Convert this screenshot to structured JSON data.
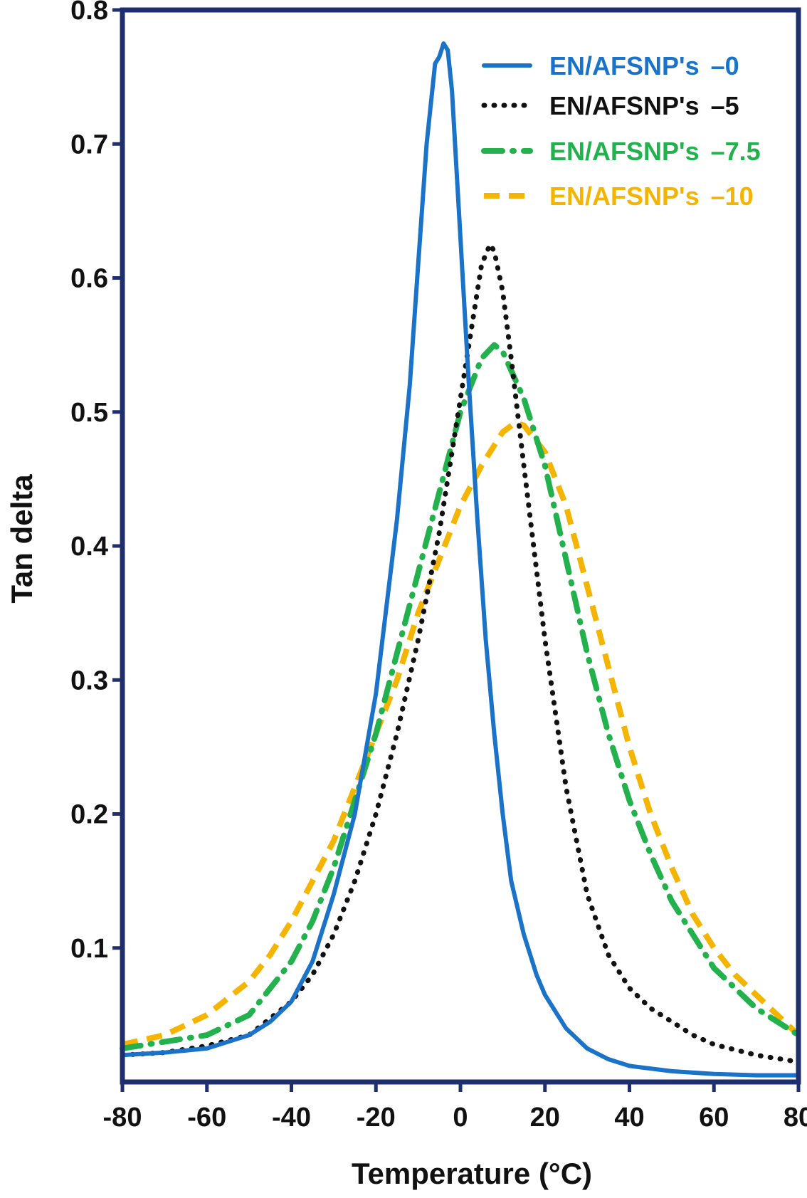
{
  "chart_data": {
    "type": "line",
    "xlabel": "Temperature",
    "xlabel_unit": "(°C)",
    "ylabel": "Tan delta",
    "xlim": [
      -80,
      80
    ],
    "ylim": [
      0,
      0.8
    ],
    "x_ticks": [
      -80,
      -60,
      -40,
      -20,
      0,
      20,
      40,
      60,
      80
    ],
    "y_ticks": [
      0.1,
      0.2,
      0.3,
      0.4,
      0.5,
      0.6,
      0.7,
      0.8
    ],
    "x_tick_labels": [
      "-80",
      "-60",
      "-40",
      "-20",
      "0",
      "20",
      "40",
      "60",
      "80"
    ],
    "y_tick_labels": [
      "0.1",
      "0.2",
      "0.3",
      "0.4",
      "0.5",
      "0.6",
      "0.7",
      "0.8"
    ],
    "grid": false,
    "legend_position": "top-right",
    "series": [
      {
        "name": "EN/AFSNP's",
        "suffix": "0",
        "color": "#1a73c9",
        "style": "solid",
        "x": [
          -80,
          -70,
          -60,
          -55,
          -50,
          -45,
          -40,
          -35,
          -30,
          -25,
          -20,
          -15,
          -12,
          -10,
          -8,
          -6,
          -5,
          -4,
          -3,
          -2,
          0,
          2,
          4,
          6,
          8,
          10,
          12,
          15,
          18,
          20,
          25,
          30,
          35,
          40,
          50,
          60,
          70,
          80
        ],
        "y": [
          0.02,
          0.022,
          0.025,
          0.03,
          0.035,
          0.045,
          0.06,
          0.09,
          0.14,
          0.2,
          0.29,
          0.42,
          0.52,
          0.61,
          0.7,
          0.76,
          0.765,
          0.775,
          0.77,
          0.74,
          0.63,
          0.52,
          0.42,
          0.33,
          0.26,
          0.2,
          0.15,
          0.11,
          0.08,
          0.065,
          0.04,
          0.025,
          0.017,
          0.012,
          0.008,
          0.006,
          0.005,
          0.005
        ]
      },
      {
        "name": "EN/AFSNP's",
        "suffix": "5",
        "color": "#111111",
        "style": "dotted",
        "x": [
          -80,
          -70,
          -60,
          -50,
          -40,
          -35,
          -30,
          -25,
          -20,
          -15,
          -10,
          -5,
          0,
          3,
          5,
          7,
          8,
          10,
          12,
          15,
          20,
          25,
          30,
          35,
          40,
          45,
          50,
          55,
          60,
          70,
          80
        ],
        "y": [
          0.02,
          0.022,
          0.027,
          0.035,
          0.06,
          0.08,
          0.11,
          0.15,
          0.2,
          0.26,
          0.33,
          0.41,
          0.51,
          0.57,
          0.61,
          0.625,
          0.62,
          0.59,
          0.54,
          0.46,
          0.33,
          0.22,
          0.14,
          0.095,
          0.07,
          0.055,
          0.045,
          0.035,
          0.028,
          0.02,
          0.015
        ]
      },
      {
        "name": "EN/AFSNP's",
        "suffix": "7.5",
        "color": "#22b14c",
        "style": "dash-dot",
        "x": [
          -80,
          -70,
          -60,
          -50,
          -40,
          -35,
          -30,
          -25,
          -20,
          -15,
          -10,
          -5,
          0,
          5,
          8,
          10,
          15,
          20,
          25,
          30,
          35,
          40,
          45,
          50,
          55,
          60,
          65,
          70,
          80
        ],
        "y": [
          0.025,
          0.03,
          0.035,
          0.05,
          0.09,
          0.12,
          0.16,
          0.21,
          0.26,
          0.32,
          0.38,
          0.44,
          0.5,
          0.54,
          0.55,
          0.545,
          0.51,
          0.46,
          0.39,
          0.32,
          0.26,
          0.21,
          0.17,
          0.135,
          0.11,
          0.085,
          0.07,
          0.055,
          0.035
        ]
      },
      {
        "name": "EN/AFSNP's",
        "suffix": "10",
        "color": "#f4b400",
        "style": "dashed",
        "x": [
          -80,
          -70,
          -60,
          -50,
          -45,
          -40,
          -35,
          -30,
          -25,
          -20,
          -15,
          -10,
          -5,
          0,
          5,
          10,
          13,
          15,
          20,
          25,
          30,
          35,
          40,
          45,
          50,
          55,
          60,
          65,
          70,
          80
        ],
        "y": [
          0.028,
          0.035,
          0.05,
          0.075,
          0.095,
          0.12,
          0.15,
          0.18,
          0.22,
          0.26,
          0.3,
          0.35,
          0.39,
          0.43,
          0.46,
          0.485,
          0.492,
          0.49,
          0.47,
          0.43,
          0.37,
          0.31,
          0.25,
          0.2,
          0.16,
          0.125,
          0.1,
          0.08,
          0.065,
          0.035
        ]
      }
    ]
  }
}
